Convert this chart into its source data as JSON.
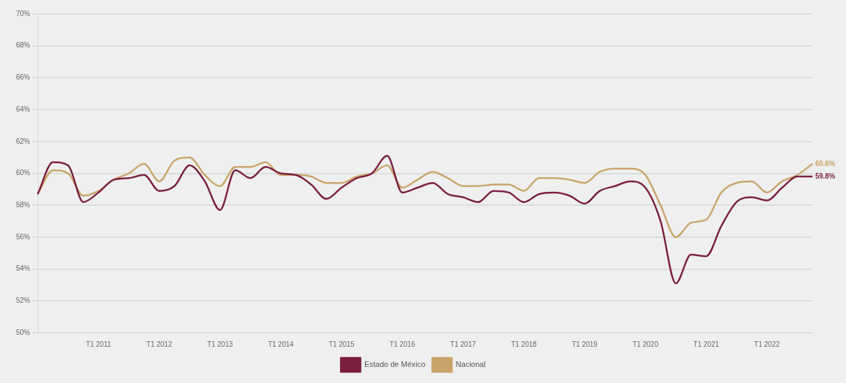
{
  "chart_data": {
    "type": "line",
    "categories": [
      null,
      null,
      null,
      null,
      "T1 2011",
      null,
      null,
      null,
      "T1 2012",
      null,
      null,
      null,
      "T1 2013",
      null,
      null,
      null,
      "T1 2014",
      null,
      null,
      null,
      "T1 2015",
      null,
      null,
      null,
      "T1 2016",
      null,
      null,
      null,
      "T1 2017",
      null,
      null,
      null,
      "T1 2018",
      null,
      null,
      null,
      "T1 2019",
      null,
      null,
      null,
      "T1 2020",
      null,
      null,
      null,
      "T1 2021",
      null,
      null,
      null,
      "T1 2022",
      null,
      null,
      null
    ],
    "series": [
      {
        "name": "Estado de México",
        "color": "#7a1f3d",
        "values": [
          58.7,
          60.7,
          60.5,
          58.2,
          58.8,
          59.6,
          59.7,
          59.9,
          58.9,
          59.2,
          60.5,
          59.5,
          57.7,
          60.2,
          59.7,
          60.4,
          60.0,
          59.9,
          59.3,
          58.4,
          59.1,
          59.7,
          60.0,
          61.1,
          58.8,
          59.1,
          59.4,
          58.7,
          58.5,
          58.2,
          58.9,
          58.8,
          58.2,
          58.7,
          58.8,
          58.6,
          58.1,
          58.9,
          59.2,
          59.5,
          59.1,
          57.0,
          53.1,
          54.9,
          54.8,
          56.7,
          58.2,
          58.5,
          58.3,
          59.1,
          59.8,
          59.8
        ],
        "value_labels": [
          null,
          null,
          null,
          null,
          null,
          null,
          null,
          null,
          null,
          null,
          null,
          null,
          null,
          null,
          null,
          null,
          null,
          null,
          null,
          null,
          null,
          null,
          null,
          null,
          null,
          null,
          null,
          null,
          null,
          null,
          null,
          null,
          null,
          null,
          null,
          null,
          null,
          null,
          null,
          null,
          null,
          null,
          null,
          null,
          null,
          null,
          null,
          null,
          null,
          null,
          null,
          "59.8%"
        ]
      },
      {
        "name": "Nacional",
        "color": "#c9a46a",
        "values": [
          58.7,
          60.2,
          60.0,
          58.6,
          58.9,
          59.6,
          60.0,
          60.6,
          59.5,
          60.8,
          61.0,
          59.9,
          59.2,
          60.4,
          60.4,
          60.7,
          59.9,
          59.9,
          59.8,
          59.4,
          59.4,
          59.8,
          60.0,
          60.5,
          59.1,
          59.6,
          60.1,
          59.7,
          59.2,
          59.2,
          59.3,
          59.3,
          58.9,
          59.7,
          59.7,
          59.6,
          59.4,
          60.1,
          60.3,
          60.3,
          59.9,
          58.0,
          56.0,
          56.9,
          57.1,
          58.8,
          59.4,
          59.5,
          58.8,
          59.5,
          59.9,
          60.6
        ],
        "value_labels": [
          null,
          null,
          null,
          null,
          null,
          null,
          null,
          null,
          null,
          null,
          null,
          null,
          null,
          null,
          null,
          null,
          null,
          null,
          null,
          null,
          null,
          null,
          null,
          null,
          null,
          null,
          null,
          null,
          null,
          null,
          null,
          null,
          null,
          null,
          null,
          null,
          null,
          null,
          null,
          null,
          null,
          null,
          null,
          null,
          null,
          null,
          null,
          null,
          null,
          null,
          null,
          "60.6%"
        ]
      }
    ],
    "ylim": [
      50,
      70
    ],
    "yticks": [
      {
        "value": 50,
        "label": "50%"
      },
      {
        "value": 52,
        "label": "52%"
      },
      {
        "value": 54,
        "label": "54%"
      },
      {
        "value": 56,
        "label": "56%"
      },
      {
        "value": 58,
        "label": "58%"
      },
      {
        "value": 60,
        "label": "60%"
      },
      {
        "value": 62,
        "label": "62%"
      },
      {
        "value": 64,
        "label": "64%"
      },
      {
        "value": 66,
        "label": "66%"
      },
      {
        "value": 68,
        "label": "68%"
      },
      {
        "value": 70,
        "label": "70%"
      }
    ],
    "grid": "y",
    "legend": "bottom"
  }
}
